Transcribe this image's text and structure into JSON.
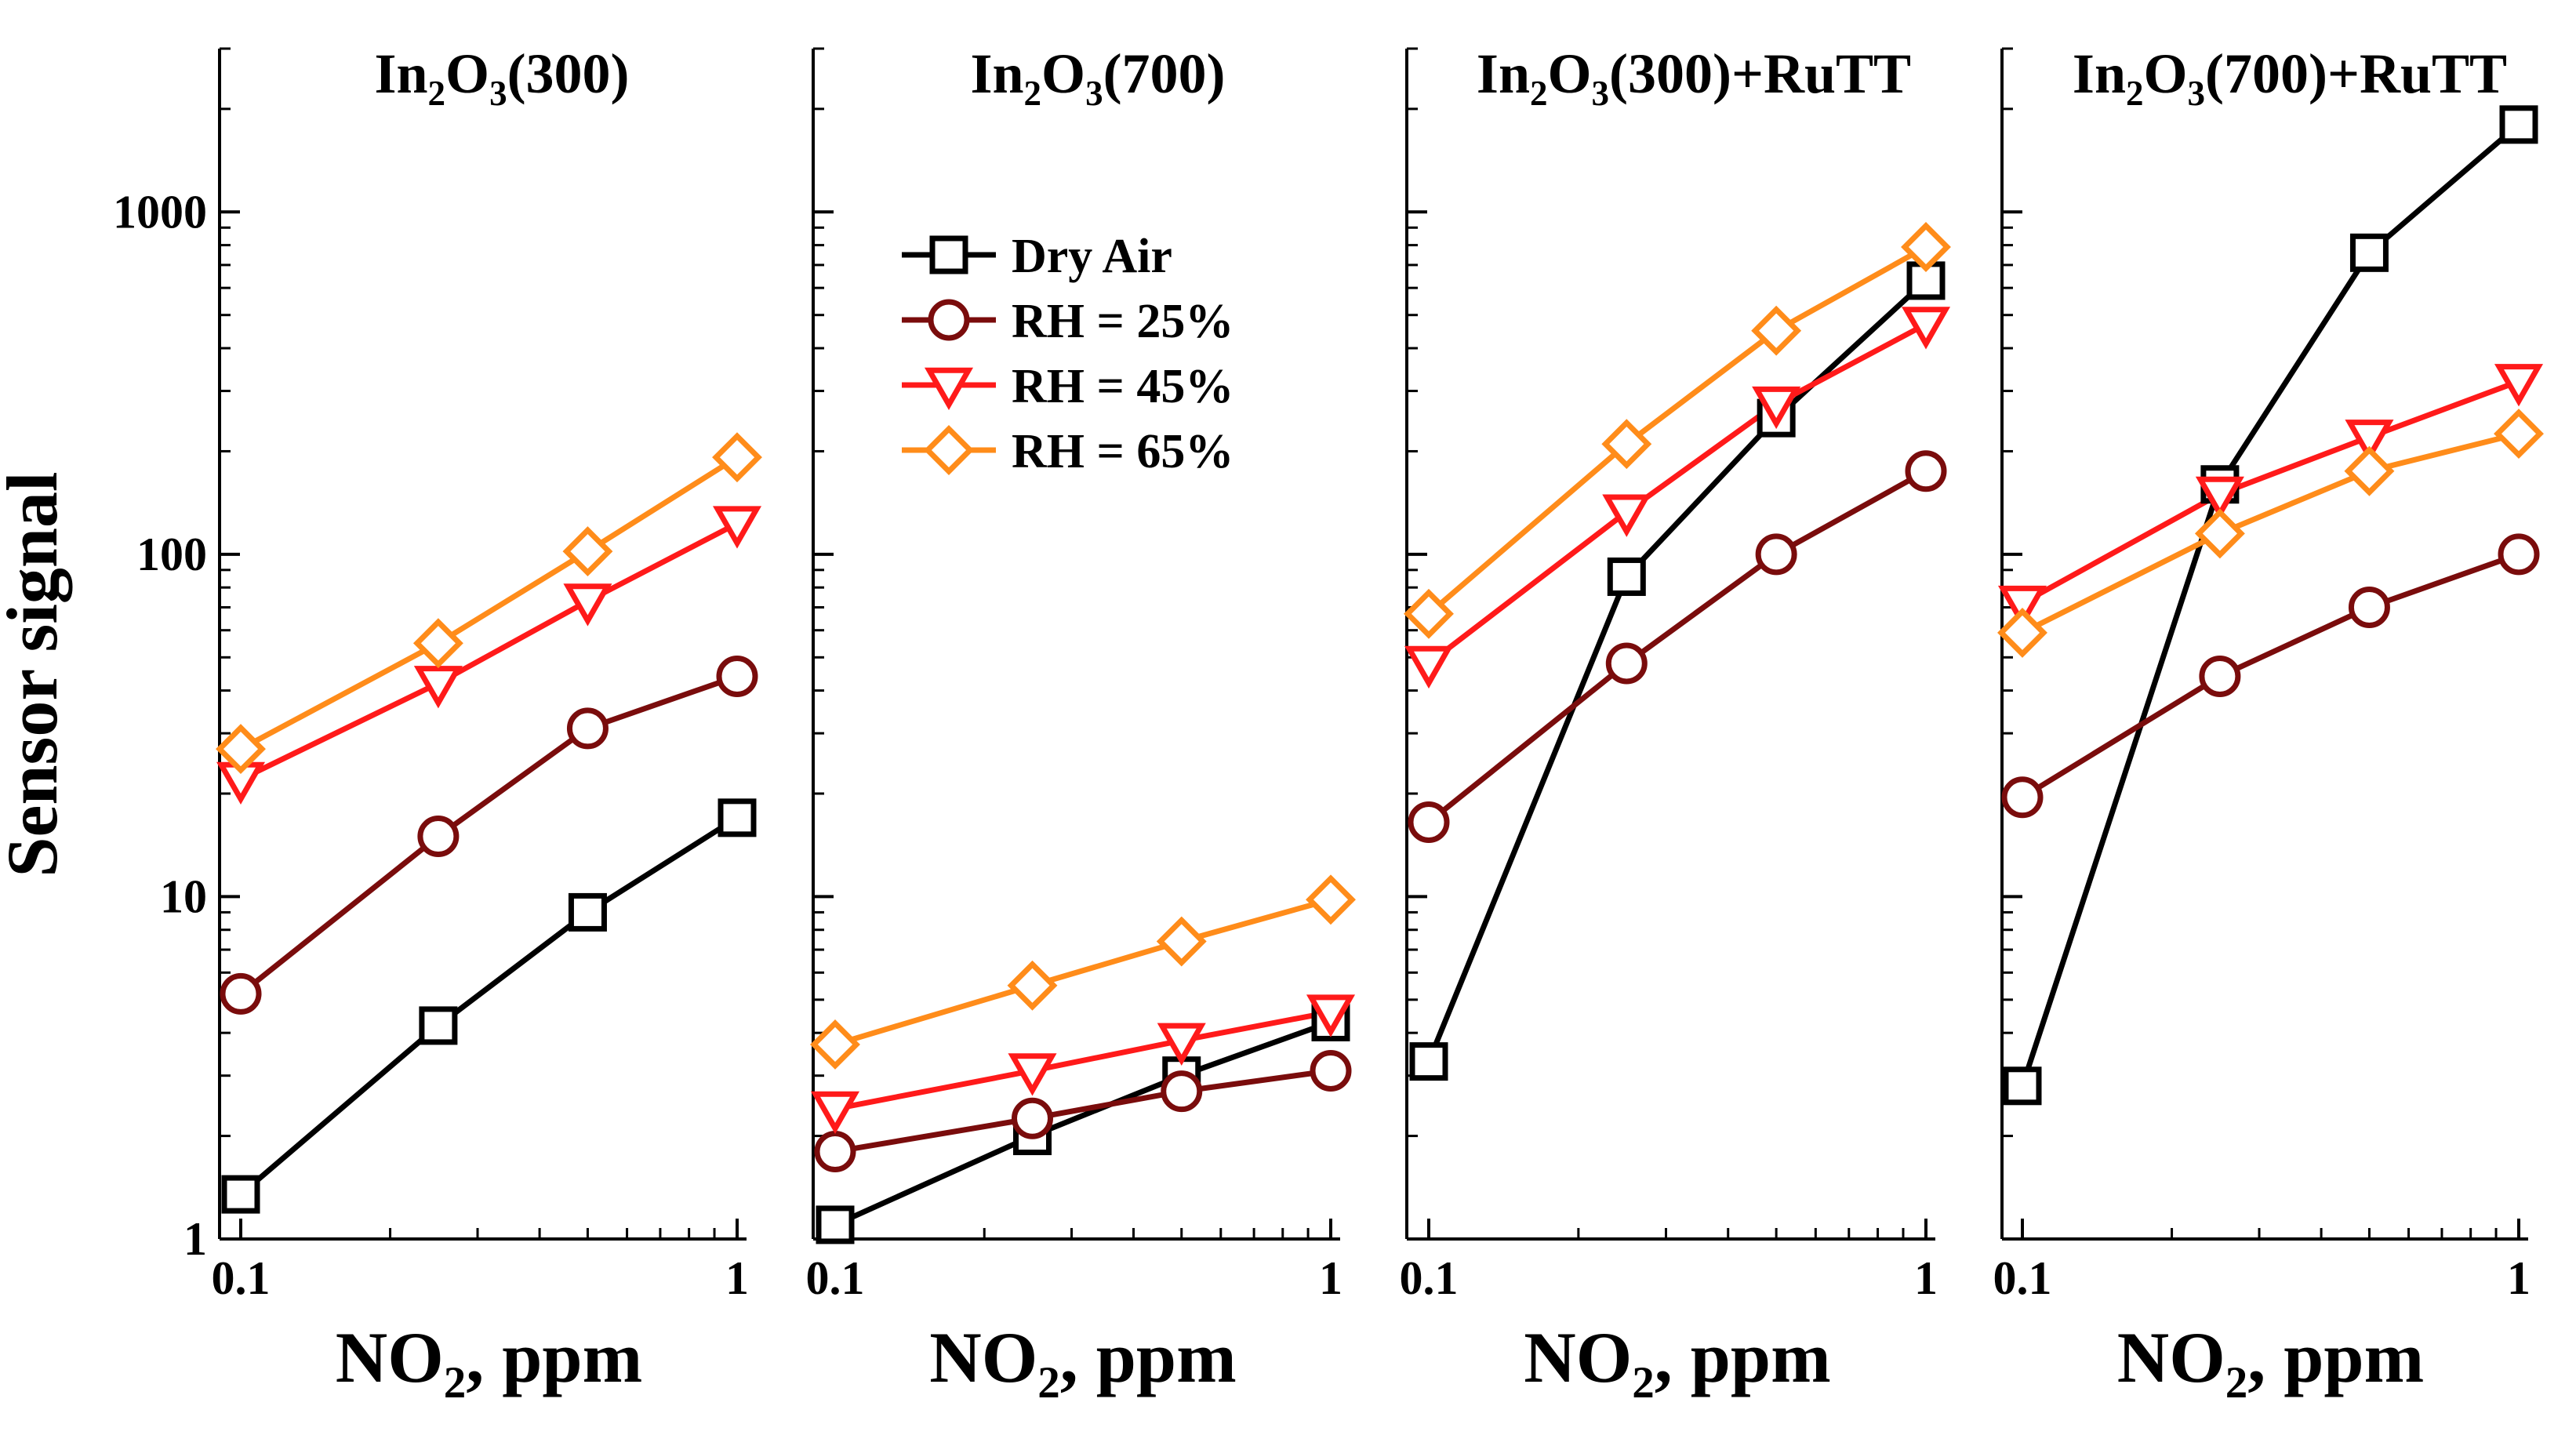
{
  "colors": {
    "Dry Air": "#000000",
    "RH = 25%": "#7a0c0c",
    "RH = 45%": "#ff1a1a",
    "RH = 65%": "#ff8c1a"
  },
  "markers": {
    "Dry Air": "square",
    "RH = 25%": "circle",
    "RH = 45%": "triangle-down",
    "RH = 65%": "diamond"
  },
  "ylabel": "Sensor signal",
  "chart_data": [
    {
      "type": "line",
      "title_parts": {
        "base": "In",
        "sub1": "2",
        "mid": "O",
        "sub2": "3",
        "rest": "(300)"
      },
      "xlabel_parts": {
        "base": "NO",
        "sub": "2",
        "rest": ", ppm"
      },
      "x": [
        0.1,
        0.25,
        0.5,
        1
      ],
      "xscale": "log",
      "yscale": "log",
      "xlim": [
        0.1,
        1
      ],
      "ylim": [
        1,
        3000
      ],
      "xticks": [
        {
          "v": 0.1,
          "label": "0.1"
        },
        {
          "v": 1,
          "label": "1"
        }
      ],
      "yticks": [
        {
          "v": 1,
          "label": "1"
        },
        {
          "v": 10,
          "label": "10"
        },
        {
          "v": 100,
          "label": "100"
        },
        {
          "v": 1000,
          "label": "1000"
        }
      ],
      "series": [
        {
          "name": "Dry Air",
          "values": [
            1.35,
            4.2,
            9.0,
            17
          ]
        },
        {
          "name": "RH = 25%",
          "values": [
            5.2,
            15,
            31,
            44
          ]
        },
        {
          "name": "RH = 45%",
          "values": [
            22,
            42,
            73,
            123
          ]
        },
        {
          "name": "RH = 65%",
          "values": [
            27,
            55,
            102,
            192
          ]
        }
      ]
    },
    {
      "type": "line",
      "title_parts": {
        "base": "In",
        "sub1": "2",
        "mid": "O",
        "sub2": "3",
        "rest": "(700)"
      },
      "xlabel_parts": {
        "base": "NO",
        "sub": "2",
        "rest": ", ppm"
      },
      "x": [
        0.1,
        0.25,
        0.5,
        1
      ],
      "xscale": "log",
      "yscale": "log",
      "xlim": [
        0.1,
        1
      ],
      "ylim": [
        1,
        3000
      ],
      "xticks": [
        {
          "v": 0.1,
          "label": "0.1"
        },
        {
          "v": 1,
          "label": "1"
        }
      ],
      "yticks": [],
      "legend": {
        "position": "top-center",
        "entries": [
          "Dry Air",
          "RH = 25%",
          "RH = 45%",
          "RH = 65%"
        ]
      },
      "series": [
        {
          "name": "Dry Air",
          "values": [
            1.1,
            2.0,
            3.0,
            4.3
          ]
        },
        {
          "name": "RH = 25%",
          "values": [
            1.8,
            2.25,
            2.7,
            3.1
          ]
        },
        {
          "name": "RH = 45%",
          "values": [
            2.4,
            3.1,
            3.8,
            4.6
          ]
        },
        {
          "name": "RH = 65%",
          "values": [
            3.7,
            5.5,
            7.4,
            9.8
          ]
        }
      ]
    },
    {
      "type": "line",
      "title_parts": {
        "base": "In",
        "sub1": "2",
        "mid": "O",
        "sub2": "3",
        "rest": "(300)+RuTT"
      },
      "xlabel_parts": {
        "base": "NO",
        "sub": "2",
        "rest": ", ppm"
      },
      "x": [
        0.1,
        0.25,
        0.5,
        1
      ],
      "xscale": "log",
      "yscale": "log",
      "xlim": [
        0.1,
        1
      ],
      "ylim": [
        1,
        3000
      ],
      "xticks": [
        {
          "v": 0.1,
          "label": "0.1"
        },
        {
          "v": 1,
          "label": "1"
        }
      ],
      "yticks": [],
      "series": [
        {
          "name": "Dry Air",
          "values": [
            3.3,
            86,
            250,
            630
          ]
        },
        {
          "name": "RH = 25%",
          "values": [
            16.5,
            48,
            100,
            175
          ]
        },
        {
          "name": "RH = 45%",
          "values": [
            48,
            133,
            275,
            470
          ]
        },
        {
          "name": "RH = 65%",
          "values": [
            67,
            210,
            450,
            790
          ]
        }
      ]
    },
    {
      "type": "line",
      "title_parts": {
        "base": "In",
        "sub1": "2",
        "mid": "O",
        "sub2": "3",
        "rest": "(700)+RuTT"
      },
      "xlabel_parts": {
        "base": "NO",
        "sub": "2",
        "rest": ", ppm"
      },
      "x": [
        0.1,
        0.25,
        0.5,
        1
      ],
      "xscale": "log",
      "yscale": "log",
      "xlim": [
        0.1,
        1
      ],
      "ylim": [
        1,
        3000
      ],
      "xticks": [
        {
          "v": 0.1,
          "label": "0.1"
        },
        {
          "v": 1,
          "label": "1"
        }
      ],
      "yticks": [],
      "series": [
        {
          "name": "Dry Air",
          "values": [
            2.8,
            160,
            760,
            1800
          ]
        },
        {
          "name": "RH = 25%",
          "values": [
            19.5,
            44,
            70,
            100
          ]
        },
        {
          "name": "RH = 45%",
          "values": [
            72,
            150,
            220,
            320
          ]
        },
        {
          "name": "RH = 65%",
          "values": [
            59,
            115,
            175,
            225
          ]
        }
      ]
    }
  ]
}
